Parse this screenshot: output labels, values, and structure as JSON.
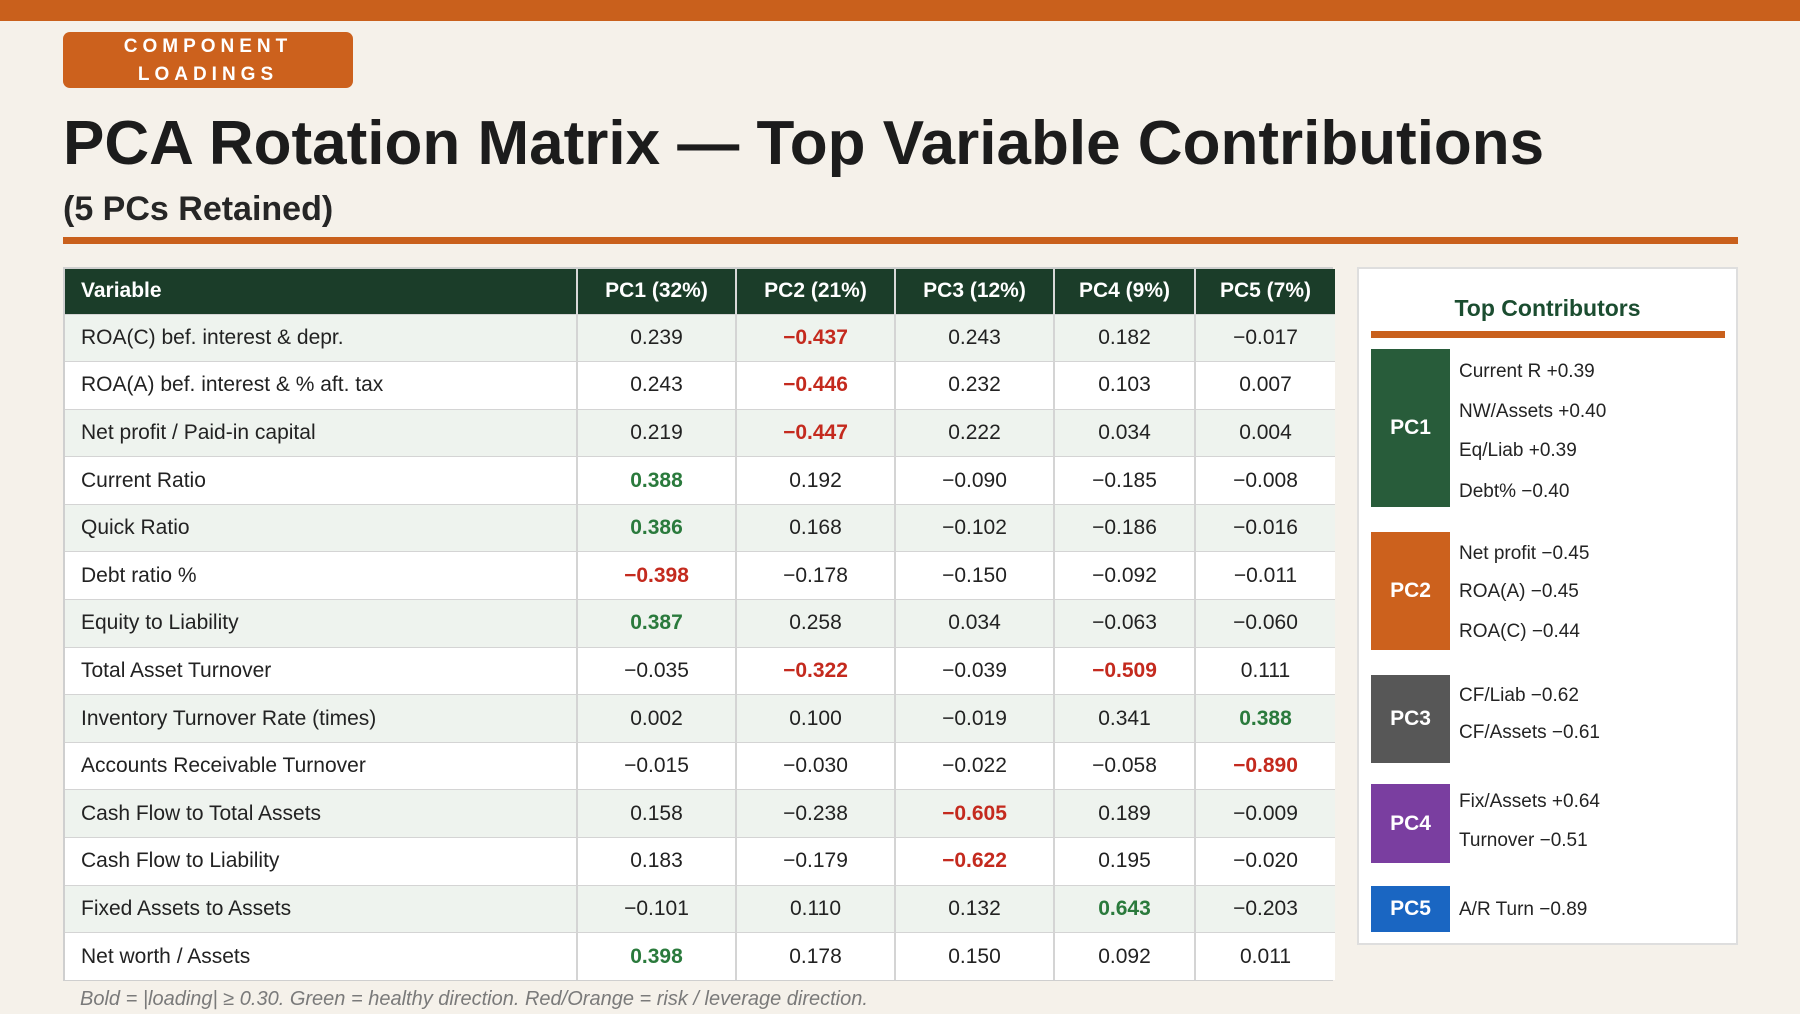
{
  "header": {
    "tag_line1": "COMPONENT",
    "tag_line2": "LOADINGS",
    "title": "PCA Rotation Matrix — Top Variable Contributions",
    "subtitle": "(5 PCs Retained)"
  },
  "table": {
    "columns": [
      "Variable",
      "PC1 (32%)",
      "PC2 (21%)",
      "PC3 (12%)",
      "PC4 (9%)",
      "PC5 (7%)"
    ],
    "rows": [
      {
        "cells": [
          "ROA(C) bef. interest & depr.",
          "0.239",
          "−0.437",
          "0.243",
          "0.182",
          "−0.017"
        ],
        "style": [
          "",
          "",
          "neg",
          "",
          "",
          ""
        ]
      },
      {
        "cells": [
          "ROA(A) bef. interest & % aft. tax",
          "0.243",
          "−0.446",
          "0.232",
          "0.103",
          "0.007"
        ],
        "style": [
          "",
          "",
          "neg",
          "",
          "",
          ""
        ]
      },
      {
        "cells": [
          "Net profit / Paid-in capital",
          "0.219",
          "−0.447",
          "0.222",
          "0.034",
          "0.004"
        ],
        "style": [
          "",
          "",
          "neg",
          "",
          "",
          ""
        ]
      },
      {
        "cells": [
          "Current Ratio",
          "0.388",
          "0.192",
          "−0.090",
          "−0.185",
          "−0.008"
        ],
        "style": [
          "",
          "pos",
          "",
          "",
          "",
          ""
        ]
      },
      {
        "cells": [
          "Quick Ratio",
          "0.386",
          "0.168",
          "−0.102",
          "−0.186",
          "−0.016"
        ],
        "style": [
          "",
          "pos",
          "",
          "",
          "",
          ""
        ]
      },
      {
        "cells": [
          "Debt ratio %",
          "−0.398",
          "−0.178",
          "−0.150",
          "−0.092",
          "−0.011"
        ],
        "style": [
          "",
          "neg",
          "",
          "",
          "",
          ""
        ]
      },
      {
        "cells": [
          "Equity to Liability",
          "0.387",
          "0.258",
          "0.034",
          "−0.063",
          "−0.060"
        ],
        "style": [
          "",
          "pos",
          "",
          "",
          "",
          ""
        ]
      },
      {
        "cells": [
          "Total Asset Turnover",
          "−0.035",
          "−0.322",
          "−0.039",
          "−0.509",
          "0.111"
        ],
        "style": [
          "",
          "",
          "neg",
          "",
          "neg",
          ""
        ]
      },
      {
        "cells": [
          "Inventory Turnover Rate (times)",
          "0.002",
          "0.100",
          "−0.019",
          "0.341",
          "0.388"
        ],
        "style": [
          "",
          "",
          "",
          "",
          "",
          "pos"
        ]
      },
      {
        "cells": [
          "Accounts Receivable Turnover",
          "−0.015",
          "−0.030",
          "−0.022",
          "−0.058",
          "−0.890"
        ],
        "style": [
          "",
          "",
          "",
          "",
          "",
          "neg"
        ]
      },
      {
        "cells": [
          "Cash Flow to Total Assets",
          "0.158",
          "−0.238",
          "−0.605",
          "0.189",
          "−0.009"
        ],
        "style": [
          "",
          "",
          "",
          "neg",
          "",
          ""
        ]
      },
      {
        "cells": [
          "Cash Flow to Liability",
          "0.183",
          "−0.179",
          "−0.622",
          "0.195",
          "−0.020"
        ],
        "style": [
          "",
          "",
          "",
          "neg",
          "",
          ""
        ]
      },
      {
        "cells": [
          "Fixed Assets to Assets",
          "−0.101",
          "0.110",
          "0.132",
          "0.643",
          "−0.203"
        ],
        "style": [
          "",
          "",
          "",
          "",
          "pos",
          ""
        ]
      },
      {
        "cells": [
          "Net worth / Assets",
          "0.398",
          "0.178",
          "0.150",
          "0.092",
          "0.011"
        ],
        "style": [
          "",
          "pos",
          "",
          "",
          "",
          ""
        ]
      }
    ]
  },
  "footnote": "Bold = |loading| ≥ 0.30.  Green = healthy direction.  Red/Orange = risk / leverage direction.",
  "panel": {
    "title": "Top Contributors",
    "groups": [
      {
        "label": "PC1",
        "color": "#285c3a",
        "items": [
          "Current R  +0.39",
          "NW/Assets +0.40",
          "Eq/Liab  +0.39",
          "Debt%  −0.40"
        ]
      },
      {
        "label": "PC2",
        "color": "#cc611d",
        "items": [
          "Net profit  −0.45",
          "ROA(A)  −0.45",
          "ROA(C)  −0.44"
        ]
      },
      {
        "label": "PC3",
        "color": "#575757",
        "items": [
          "CF/Liab  −0.62",
          "CF/Assets −0.61"
        ]
      },
      {
        "label": "PC4",
        "color": "#7a3ea0",
        "items": [
          "Fix/Assets +0.64",
          "Turnover −0.51"
        ]
      },
      {
        "label": "PC5",
        "color": "#1a66c2",
        "items": [
          "A/R Turn  −0.89"
        ]
      }
    ]
  },
  "colors": {
    "accent": "#c9601c",
    "header_green": "#1b3d29",
    "positive": "#2a7a3c",
    "negative": "#c42a1e"
  }
}
